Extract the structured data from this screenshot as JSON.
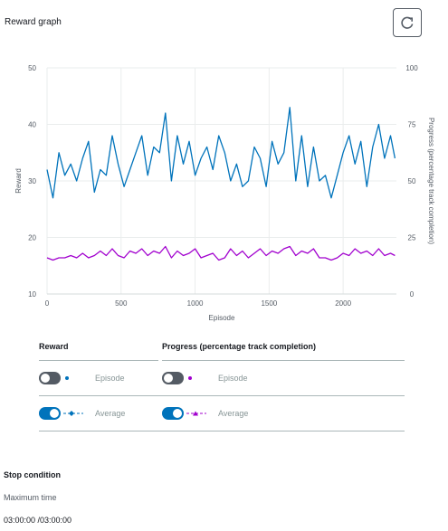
{
  "panel": {
    "title": "Reward graph"
  },
  "colors": {
    "reward": "#0073bb",
    "progress": "#a100ce",
    "accent": "#0073bb"
  },
  "chart_data": {
    "type": "line",
    "xlabel": "Episode",
    "ylabel": "Reward",
    "y2label": "Progress (percentage track completion)",
    "xlim": [
      0,
      2360
    ],
    "ylim": [
      10,
      50
    ],
    "y2lim": [
      0,
      100
    ],
    "xticks": [
      0,
      500,
      1000,
      1500,
      2000
    ],
    "yticks": [
      10,
      20,
      30,
      40,
      50
    ],
    "y2ticks": [
      0,
      25,
      50,
      75,
      100
    ],
    "grid": true,
    "series": [
      {
        "name": "Reward",
        "axis": "left",
        "x": [
          0,
          40,
          80,
          120,
          160,
          200,
          240,
          280,
          320,
          360,
          400,
          440,
          480,
          520,
          560,
          600,
          640,
          680,
          720,
          760,
          800,
          840,
          880,
          920,
          960,
          1000,
          1040,
          1080,
          1120,
          1160,
          1200,
          1240,
          1280,
          1320,
          1360,
          1400,
          1440,
          1480,
          1520,
          1560,
          1600,
          1640,
          1680,
          1720,
          1760,
          1800,
          1840,
          1880,
          1920,
          1960,
          2000,
          2040,
          2080,
          2120,
          2160,
          2200,
          2240,
          2280,
          2320,
          2350
        ],
        "y": [
          32,
          27,
          35,
          31,
          33,
          30,
          34,
          37,
          28,
          32,
          31,
          38,
          33,
          29,
          32,
          35,
          38,
          31,
          36,
          35,
          42,
          30,
          38,
          33,
          37,
          31,
          34,
          36,
          32,
          38,
          35,
          30,
          33,
          29,
          30,
          36,
          34,
          29,
          37,
          33,
          35,
          43,
          30,
          38,
          29,
          36,
          30,
          31,
          27,
          31,
          35,
          38,
          33,
          37,
          29,
          36,
          40,
          34,
          38,
          34
        ]
      },
      {
        "name": "Progress (percentage track completion)",
        "axis": "right",
        "x": [
          0,
          40,
          80,
          120,
          160,
          200,
          240,
          280,
          320,
          360,
          400,
          440,
          480,
          520,
          560,
          600,
          640,
          680,
          720,
          760,
          800,
          840,
          880,
          920,
          960,
          1000,
          1040,
          1080,
          1120,
          1160,
          1200,
          1240,
          1280,
          1320,
          1360,
          1400,
          1440,
          1480,
          1520,
          1560,
          1600,
          1640,
          1680,
          1720,
          1760,
          1800,
          1840,
          1880,
          1920,
          1960,
          2000,
          2040,
          2080,
          2120,
          2160,
          2200,
          2240,
          2280,
          2320,
          2350
        ],
        "y": [
          16,
          15,
          16,
          16,
          17,
          16,
          18,
          16,
          17,
          19,
          17,
          20,
          17,
          16,
          19,
          18,
          20,
          17,
          19,
          18,
          21,
          16,
          19,
          17,
          18,
          20,
          16,
          17,
          18,
          15,
          16,
          20,
          17,
          19,
          16,
          18,
          20,
          17,
          19,
          18,
          20,
          21,
          17,
          19,
          18,
          20,
          16,
          16,
          15,
          16,
          18,
          17,
          20,
          18,
          19,
          17,
          20,
          17,
          18,
          17
        ]
      }
    ]
  },
  "legend": {
    "reward_header": "Reward",
    "progress_header": "Progress (percentage track completion)",
    "rows": [
      {
        "label": "Episode",
        "checked": false
      },
      {
        "label": "Average",
        "checked": true
      }
    ]
  },
  "stop_condition": {
    "title": "Stop condition",
    "label": "Maximum time",
    "value": "03:00:00 /03:00:00"
  }
}
